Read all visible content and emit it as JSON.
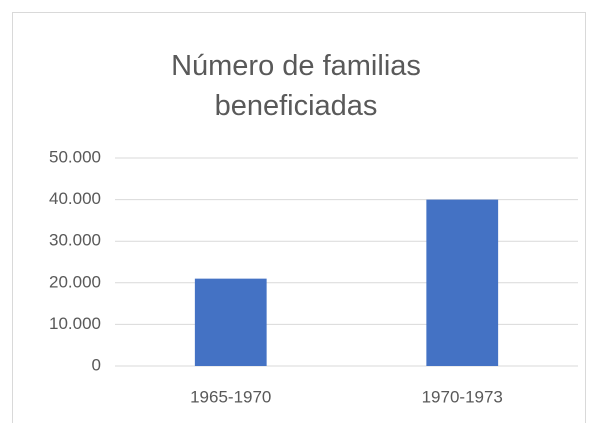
{
  "chart_data": {
    "type": "bar",
    "title": "Número de familias beneficiadas",
    "categories": [
      "1965-1970",
      "1970-1973"
    ],
    "values": [
      21000,
      40000
    ],
    "color": "#4472c4",
    "ylim": [
      0,
      50000
    ],
    "yticks": [
      0,
      {
        "value": 10000,
        "label": "10.000"
      },
      {
        "value": 20000,
        "label": "20.000"
      },
      {
        "value": 30000,
        "label": "30.000"
      },
      {
        "value": 40000,
        "label": "40.000"
      },
      {
        "value": 50000,
        "label": "50.000"
      }
    ],
    "grid": true
  }
}
